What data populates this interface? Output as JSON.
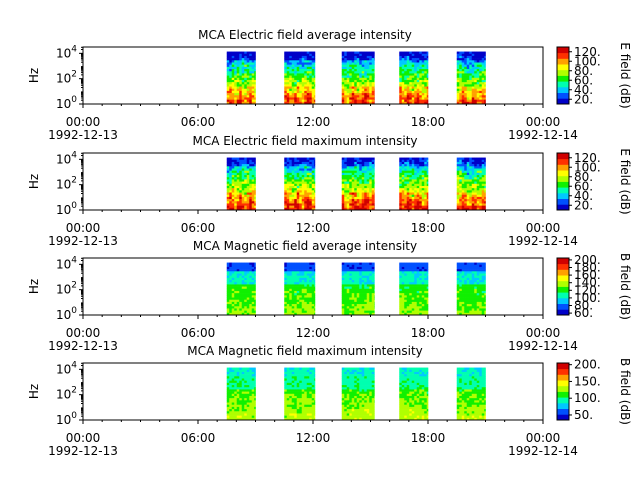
{
  "chart_data": [
    {
      "type": "heatmap",
      "title": "MCA  Electric field average intensity",
      "ylabel": "Hz",
      "y_scale": "log",
      "ylim": [
        1,
        31623
      ],
      "y_ticks": [
        {
          "value": 1,
          "base": "10",
          "exp": "0"
        },
        {
          "value": 100,
          "base": "10",
          "exp": "2"
        },
        {
          "value": 10000,
          "base": "10",
          "exp": "4"
        }
      ],
      "x_ticks": [
        {
          "hour": 0,
          "time": "00:00",
          "date": "1992-12-13"
        },
        {
          "hour": 6,
          "time": "06:00",
          "date": ""
        },
        {
          "hour": 12,
          "time": "12:00",
          "date": ""
        },
        {
          "hour": 18,
          "time": "18:00",
          "date": ""
        },
        {
          "hour": 24,
          "time": "00:00",
          "date": "1992-12-14"
        }
      ],
      "xlim_hours": [
        0,
        24
      ],
      "data_intervals_hours": [
        [
          7.5,
          9.0
        ],
        [
          10.5,
          12.1
        ],
        [
          13.5,
          15.2
        ],
        [
          16.5,
          18.0
        ],
        [
          19.5,
          21.0
        ]
      ],
      "colorbar": {
        "label": "E field (dB)",
        "min": 10,
        "max": 130,
        "ticks": [
          20,
          40,
          60,
          80,
          100,
          120
        ],
        "tick_labels": [
          "20.",
          "40.",
          "60.",
          "80.",
          "100.",
          "120."
        ]
      },
      "colormap": [
        "#0000c8",
        "#0050ff",
        "#00c8ff",
        "#00ffb0",
        "#10f000",
        "#b0ff00",
        "#ffff00",
        "#ffa000",
        "#ff3000",
        "#d00000"
      ],
      "profile": "electric-average"
    },
    {
      "type": "heatmap",
      "title": "MCA  Electric field maximum intensity",
      "ylabel": "Hz",
      "y_scale": "log",
      "ylim": [
        1,
        31623
      ],
      "y_ticks": [
        {
          "value": 1,
          "base": "10",
          "exp": "0"
        },
        {
          "value": 100,
          "base": "10",
          "exp": "2"
        },
        {
          "value": 10000,
          "base": "10",
          "exp": "4"
        }
      ],
      "x_ticks": [
        {
          "hour": 0,
          "time": "00:00",
          "date": "1992-12-13"
        },
        {
          "hour": 6,
          "time": "06:00",
          "date": ""
        },
        {
          "hour": 12,
          "time": "12:00",
          "date": ""
        },
        {
          "hour": 18,
          "time": "18:00",
          "date": ""
        },
        {
          "hour": 24,
          "time": "00:00",
          "date": "1992-12-14"
        }
      ],
      "xlim_hours": [
        0,
        24
      ],
      "data_intervals_hours": [
        [
          7.5,
          9.0
        ],
        [
          10.5,
          12.1
        ],
        [
          13.5,
          15.2
        ],
        [
          16.5,
          18.0
        ],
        [
          19.5,
          21.0
        ]
      ],
      "colorbar": {
        "label": "E field (dB)",
        "min": 10,
        "max": 130,
        "ticks": [
          20,
          40,
          60,
          80,
          100,
          120
        ],
        "tick_labels": [
          "20.",
          "40.",
          "60.",
          "80.",
          "100.",
          "120."
        ]
      },
      "colormap": [
        "#0000c8",
        "#0050ff",
        "#00c8ff",
        "#00ffb0",
        "#10f000",
        "#b0ff00",
        "#ffff00",
        "#ffa000",
        "#ff3000",
        "#d00000"
      ],
      "profile": "electric-maximum"
    },
    {
      "type": "heatmap",
      "title": "MCA  Magnetic field average intensity",
      "ylabel": "Hz",
      "y_scale": "log",
      "ylim": [
        1,
        31623
      ],
      "y_ticks": [
        {
          "value": 1,
          "base": "10",
          "exp": "0"
        },
        {
          "value": 100,
          "base": "10",
          "exp": "2"
        },
        {
          "value": 10000,
          "base": "10",
          "exp": "4"
        }
      ],
      "x_ticks": [
        {
          "hour": 0,
          "time": "00:00",
          "date": "1992-12-13"
        },
        {
          "hour": 6,
          "time": "06:00",
          "date": ""
        },
        {
          "hour": 12,
          "time": "12:00",
          "date": ""
        },
        {
          "hour": 18,
          "time": "18:00",
          "date": ""
        },
        {
          "hour": 24,
          "time": "00:00",
          "date": "1992-12-14"
        }
      ],
      "xlim_hours": [
        0,
        24
      ],
      "data_intervals_hours": [
        [
          7.5,
          9.0
        ],
        [
          10.5,
          12.1
        ],
        [
          13.5,
          15.2
        ],
        [
          16.5,
          18.0
        ],
        [
          19.5,
          21.0
        ]
      ],
      "colorbar": {
        "label": "B field (dB)",
        "min": 55,
        "max": 205,
        "ticks": [
          60,
          80,
          100,
          120,
          140,
          160,
          180,
          200
        ],
        "tick_labels": [
          "60.",
          "80.",
          "100.",
          "120.",
          "140.",
          "160.",
          "180.",
          "200."
        ]
      },
      "colormap": [
        "#0000c8",
        "#0050ff",
        "#00c8ff",
        "#00ffb0",
        "#10f000",
        "#b0ff00",
        "#ffff00",
        "#ffa000",
        "#ff3000",
        "#d00000"
      ],
      "profile": "magnetic-average"
    },
    {
      "type": "heatmap",
      "title": "MCA  Magnetic field maximum intensity",
      "ylabel": "Hz",
      "y_scale": "log",
      "ylim": [
        1,
        31623
      ],
      "y_ticks": [
        {
          "value": 1,
          "base": "10",
          "exp": "0"
        },
        {
          "value": 100,
          "base": "10",
          "exp": "2"
        },
        {
          "value": 10000,
          "base": "10",
          "exp": "4"
        }
      ],
      "x_ticks": [
        {
          "hour": 0,
          "time": "00:00",
          "date": "1992-12-13"
        },
        {
          "hour": 6,
          "time": "06:00",
          "date": ""
        },
        {
          "hour": 12,
          "time": "12:00",
          "date": ""
        },
        {
          "hour": 18,
          "time": "18:00",
          "date": ""
        },
        {
          "hour": 24,
          "time": "00:00",
          "date": "1992-12-14"
        }
      ],
      "xlim_hours": [
        0,
        24
      ],
      "data_intervals_hours": [
        [
          7.5,
          9.0
        ],
        [
          10.5,
          12.1
        ],
        [
          13.5,
          15.2
        ],
        [
          16.5,
          18.0
        ],
        [
          19.5,
          21.0
        ]
      ],
      "colorbar": {
        "label": "B field (dB)",
        "min": 35,
        "max": 205,
        "ticks": [
          50,
          100,
          150,
          200
        ],
        "tick_labels": [
          "50.",
          "100.",
          "150.",
          "200."
        ]
      },
      "colormap": [
        "#0000c8",
        "#0050ff",
        "#00c8ff",
        "#00ffb0",
        "#10f000",
        "#b0ff00",
        "#ffff00",
        "#ffa000",
        "#ff3000",
        "#d00000"
      ],
      "profile": "magnetic-maximum"
    }
  ]
}
